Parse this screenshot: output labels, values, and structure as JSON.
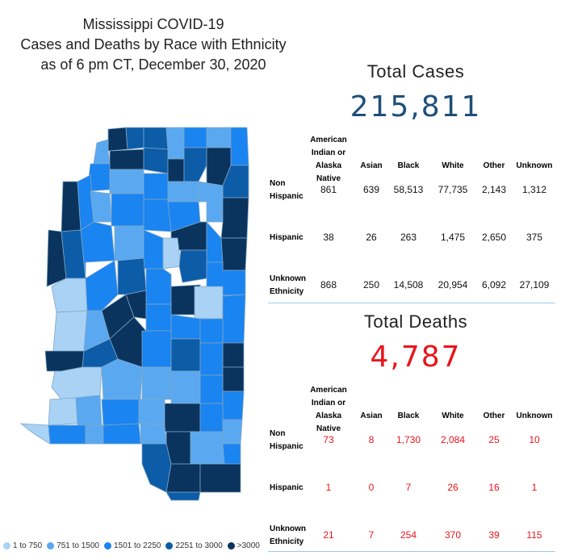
{
  "title": {
    "line1": "Mississippi COVID-19",
    "line2": "Cases and Deaths by Race with Ethnicity",
    "line3": "as of 6 pm CT, December 30, 2020"
  },
  "colors": {
    "bin1": "#a9d2f5",
    "bin2": "#5aa9f0",
    "bin3": "#1a84f0",
    "bin4": "#0c5ca8",
    "bin5": "#0a335e",
    "cases_number": "#1f4e79",
    "deaths_number": "#e8151b"
  },
  "legend": [
    {
      "label": "1 to 750",
      "color": "#a9d2f5"
    },
    {
      "label": "751 to 1500",
      "color": "#5aa9f0"
    },
    {
      "label": "1501 to 2250",
      "color": "#1a84f0"
    },
    {
      "label": "2251 to 3000",
      "color": "#0c5ca8"
    },
    {
      "label": ">3000",
      "color": "#0a335e"
    }
  ],
  "cases": {
    "heading": "Total Cases",
    "total": "215,811",
    "columns": [
      "American Indian or Alaska Native",
      "Asian",
      "Black",
      "White",
      "Other",
      "Unknown"
    ],
    "rows": [
      {
        "label": "Non Hispanic",
        "values": [
          "861",
          "639",
          "58,513",
          "77,735",
          "2,143",
          "1,312"
        ]
      },
      {
        "label": "Hispanic",
        "values": [
          "38",
          "26",
          "263",
          "1,475",
          "2,650",
          "375"
        ]
      },
      {
        "label": "Unknown Ethnicity",
        "values": [
          "868",
          "250",
          "14,508",
          "20,954",
          "6,092",
          "27,109"
        ]
      }
    ]
  },
  "deaths": {
    "heading": "Total Deaths",
    "total": "4,787",
    "columns": [
      "American Indian or Alaska Native",
      "Asian",
      "Black",
      "White",
      "Other",
      "Unknown"
    ],
    "rows": [
      {
        "label": "Non Hispanic",
        "values": [
          "73",
          "8",
          "1,730",
          "2,084",
          "25",
          "10"
        ]
      },
      {
        "label": "Hispanic",
        "values": [
          "1",
          "0",
          "7",
          "26",
          "16",
          "1"
        ]
      },
      {
        "label": "Unknown Ethnicity",
        "values": [
          "21",
          "7",
          "254",
          "370",
          "39",
          "115"
        ]
      }
    ]
  }
}
